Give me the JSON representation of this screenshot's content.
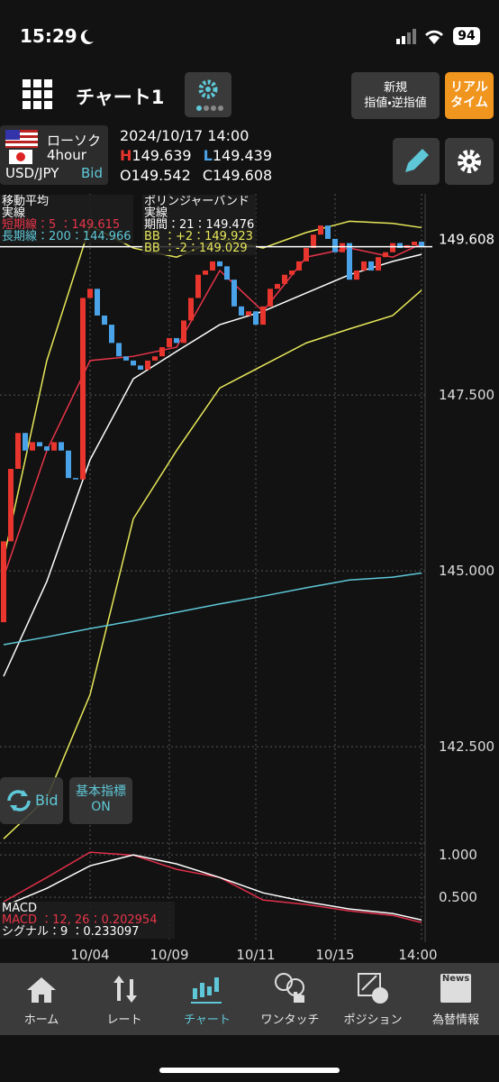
{
  "status_bar": {
    "time": "15:29",
    "battery": "94"
  },
  "header": {
    "title": "チャート1",
    "new_order": [
      "新規",
      "指値・逆指値"
    ],
    "realtime": [
      "リアル",
      "タイム"
    ]
  },
  "info": {
    "chart_type": "ローソク",
    "interval": "4hour",
    "pair": "USD/JPY",
    "side": "Bid",
    "datetime": "2024/10/17 14:00",
    "high_label": "H",
    "high": 149.639,
    "low_label": "L",
    "low": 149.439,
    "open_label": "O",
    "open": 149.542,
    "close_label": "C",
    "close": 149.608
  },
  "indicators": {
    "ma": [
      "移動平均",
      "実線",
      "短期線：5 ：149.615",
      "長期線：200：144.966"
    ],
    "bb": [
      "ボリンジャーバンド",
      "実線",
      "期間：21：149.476",
      "BB ：+2：149.923",
      "BB ：-2：149.029"
    ]
  },
  "chart_data": [
    {
      "type": "candlestick",
      "up_color": "#e8352d",
      "down_color": "#4aa3e8",
      "first_open": 144.27,
      "closes": [
        145.42,
        146.45,
        146.96,
        146.71,
        146.83,
        146.77,
        146.71,
        146.83,
        146.71,
        146.32,
        146.3,
        148.88,
        149.01,
        148.63,
        148.5,
        148.24,
        148.05,
        147.99,
        147.92,
        147.86,
        147.99,
        148.05,
        148.18,
        148.31,
        148.24,
        148.56,
        148.88,
        149.21,
        149.27,
        149.4,
        149.33,
        149.14,
        148.76,
        148.63,
        148.69,
        148.5,
        148.76,
        149.01,
        149.08,
        149.21,
        149.27,
        149.4,
        149.59,
        149.78,
        149.91,
        149.72,
        149.53,
        149.66,
        149.14,
        149.27,
        149.4,
        149.27,
        149.46,
        149.53,
        149.66,
        149.59,
        149.63,
        149.68,
        149.608
      ],
      "ylim": [
        141.13,
        150.36
      ],
      "yticks": [
        {
          "value": 147.5,
          "label": "147.500"
        },
        {
          "value": 145,
          "label": "145.000"
        },
        {
          "value": 142.5,
          "label": "142.500"
        }
      ],
      "last_price": 149.608,
      "xticks": [
        {
          "index": 12,
          "label": "10/04"
        },
        {
          "index": 23,
          "label": "10/09"
        },
        {
          "index": 35,
          "label": "10/11"
        },
        {
          "index": 46,
          "label": "10/15"
        },
        {
          "index": 58,
          "label": "14:00"
        }
      ],
      "line_x": [
        0,
        6,
        12,
        18,
        24,
        30,
        36,
        42,
        48,
        54,
        58
      ],
      "series": [
        {
          "color": "#e8e85a",
          "values": [
            145.17,
            147.99,
            149.91,
            149.59,
            149.46,
            149.72,
            149.59,
            149.81,
            149.97,
            149.94,
            149.88
          ]
        },
        {
          "color": "#ffffff",
          "values": [
            143.5,
            144.85,
            146.58,
            147.73,
            148.12,
            148.5,
            148.69,
            148.95,
            149.21,
            149.4,
            149.5
          ]
        },
        {
          "color": "#e8e85a",
          "values": [
            141.19,
            141.77,
            143.24,
            145.74,
            146.71,
            147.6,
            147.92,
            148.24,
            148.44,
            148.63,
            148.99
          ]
        },
        {
          "color": "#e8354a",
          "values": [
            144.91,
            146.71,
            147.99,
            148.05,
            148.18,
            149.27,
            148.69,
            149.46,
            149.59,
            149.46,
            149.65
          ]
        },
        {
          "color": "#5ec8d8",
          "values": [
            143.95,
            144.06,
            144.18,
            144.29,
            144.41,
            144.53,
            144.64,
            144.76,
            144.87,
            144.91,
            144.97
          ]
        }
      ]
    },
    {
      "type": "line",
      "title": "MACD",
      "legend": [
        "MACD ：12, 26：0.202954",
        "シグナル：9 ：0.233097"
      ],
      "ylim": [
        -0.03,
        1.14
      ],
      "yticks": [
        {
          "value": 1,
          "label": "1.000"
        },
        {
          "value": 0.5,
          "label": "0.500"
        }
      ],
      "x": [
        0,
        6,
        12,
        18,
        24,
        30,
        36,
        42,
        48,
        54,
        58
      ],
      "series": [
        {
          "color": "#e0304a",
          "values": [
            0.447,
            0.734,
            1.032,
            0.997,
            0.83,
            0.734,
            0.468,
            0.415,
            0.34,
            0.287,
            0.203
          ]
        },
        {
          "color": "#ffffff",
          "values": [
            0.394,
            0.606,
            0.872,
            1.0,
            0.894,
            0.734,
            0.553,
            0.447,
            0.362,
            0.309,
            0.233
          ]
        }
      ]
    }
  ],
  "chart_buttons": {
    "bid": "Bid",
    "indicator": [
      "基本指標",
      "ON"
    ]
  },
  "tabs": [
    "ホーム",
    "レート",
    "チャート",
    "ワンタッチ",
    "ポジション",
    "為替情報"
  ],
  "news_icon": "News"
}
